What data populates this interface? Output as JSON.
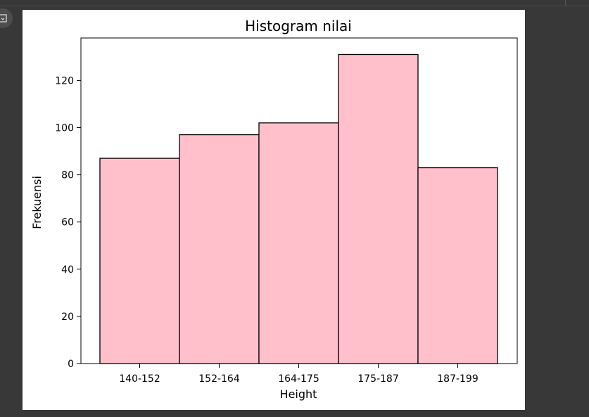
{
  "icons": {
    "cell_output_icon": "output-toggle-icon"
  },
  "colors": {
    "bar_fill": "#ffc0cb",
    "bar_edge": "#000000",
    "page_background": "#383838",
    "plot_background": "#ffffff"
  },
  "chart_data": {
    "type": "bar",
    "title": "Histogram nilai",
    "xlabel": "Height",
    "ylabel": "Frekuensi",
    "categories": [
      "140-152",
      "152-164",
      "164-175",
      "175-187",
      "187-199"
    ],
    "values": [
      87,
      97,
      102,
      131,
      83
    ],
    "ylim": [
      0,
      138
    ],
    "yticks": [
      0,
      20,
      40,
      60,
      80,
      100,
      120
    ],
    "grid": false,
    "legend": "none"
  }
}
